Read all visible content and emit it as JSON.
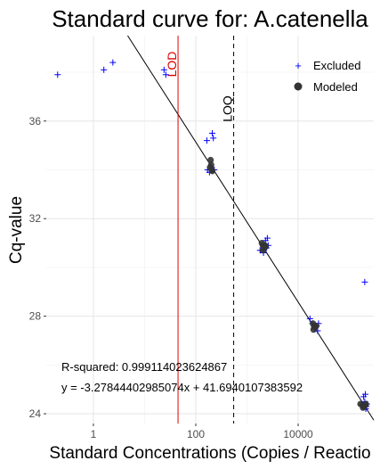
{
  "chart_data": {
    "type": "scatter",
    "title": "Standard curve for: A.catenella",
    "xlabel": "Standard Concentrations (Copies / Reactio",
    "ylabel": "Cq-value",
    "x_scale": "log10",
    "xlim": [
      0.12,
      300000
    ],
    "ylim": [
      23.6,
      39.5
    ],
    "x_ticks": [
      1,
      100,
      10000
    ],
    "x_tick_labels": [
      "1",
      "100",
      "10000"
    ],
    "y_ticks": [
      24,
      28,
      32,
      36
    ],
    "y_tick_labels": [
      "24",
      "28",
      "32",
      "36"
    ],
    "grid": true,
    "legend_position": "top-right",
    "legend": [
      {
        "label": "Excluded",
        "marker": "plus",
        "color": "#0000ff"
      },
      {
        "label": "Modeled",
        "marker": "circle",
        "color": "#333333"
      }
    ],
    "regression": {
      "slope": -3.27844402985074,
      "intercept": 41.6940107383592,
      "color": "#000000"
    },
    "vlines": [
      {
        "label": "LOD",
        "x": 45,
        "color": "#dd0000",
        "style": "solid"
      },
      {
        "label": "LOQ",
        "x": 550,
        "color": "#000000",
        "style": "dashed"
      }
    ],
    "annotations": [
      "R-squared: 0.999114023624867",
      "y = -3.27844402985074x + 41.6940107383592"
    ],
    "series": [
      {
        "name": "Excluded",
        "marker": "plus",
        "color": "#0000ff",
        "points": [
          [
            0.2,
            37.9
          ],
          [
            1.6,
            38.1
          ],
          [
            2.4,
            38.4
          ],
          [
            24,
            38.1
          ],
          [
            26,
            37.9
          ],
          [
            165,
            35.2
          ],
          [
            210,
            35.5
          ],
          [
            220,
            35.3
          ],
          [
            170,
            34.0
          ],
          [
            185,
            33.9
          ],
          [
            230,
            34.0
          ],
          [
            1800,
            30.7
          ],
          [
            2100,
            30.6
          ],
          [
            2300,
            31.1
          ],
          [
            2400,
            30.8
          ],
          [
            2500,
            31.2
          ],
          [
            2600,
            30.9
          ],
          [
            17000,
            27.9
          ],
          [
            19000,
            27.7
          ],
          [
            21000,
            27.5
          ],
          [
            23000,
            27.6
          ],
          [
            25000,
            27.7
          ],
          [
            24000,
            27.4
          ],
          [
            200000,
            29.4
          ],
          [
            190000,
            24.7
          ],
          [
            200000,
            24.5
          ],
          [
            210000,
            24.2
          ],
          [
            220000,
            24.4
          ],
          [
            205000,
            24.8
          ],
          [
            215000,
            24.3
          ]
        ]
      },
      {
        "name": "Modeled",
        "marker": "circle",
        "color": "#333333",
        "points": [
          [
            195,
            34.4
          ],
          [
            200,
            34.2
          ],
          [
            205,
            34.0
          ],
          [
            210,
            33.95
          ],
          [
            190,
            34.1
          ],
          [
            1950,
            31.0
          ],
          [
            2050,
            30.9
          ],
          [
            2150,
            30.8
          ],
          [
            2250,
            30.9
          ],
          [
            2050,
            30.7
          ],
          [
            2300,
            30.85
          ],
          [
            19500,
            27.7
          ],
          [
            20500,
            27.6
          ],
          [
            21500,
            27.55
          ],
          [
            20000,
            27.45
          ],
          [
            22500,
            27.6
          ],
          [
            165000,
            24.4
          ],
          [
            180000,
            24.35
          ],
          [
            195000,
            24.3
          ],
          [
            205000,
            24.35
          ],
          [
            185000,
            24.25
          ],
          [
            210000,
            24.4
          ]
        ]
      }
    ]
  }
}
